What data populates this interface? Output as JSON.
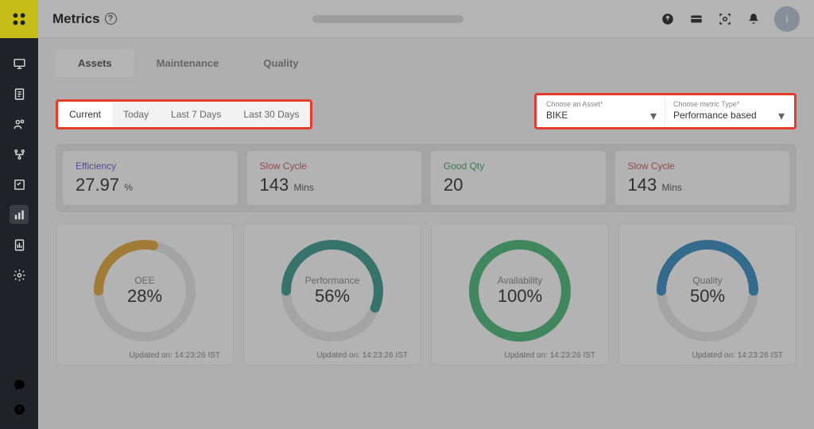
{
  "page": {
    "title": "Metrics"
  },
  "sidebar": {
    "icons": [
      {
        "name": "monitor-icon"
      },
      {
        "name": "orders-icon"
      },
      {
        "name": "users-icon"
      },
      {
        "name": "workflow-icon"
      },
      {
        "name": "tasks-icon"
      },
      {
        "name": "metrics-icon",
        "active": true
      },
      {
        "name": "reports-icon"
      },
      {
        "name": "settings-icon"
      }
    ],
    "bottom": [
      {
        "name": "feedback-icon"
      },
      {
        "name": "help-icon"
      }
    ]
  },
  "topbar": {
    "icons": [
      {
        "name": "upload-icon"
      },
      {
        "name": "card-icon"
      },
      {
        "name": "scan-icon"
      },
      {
        "name": "bell-icon"
      }
    ],
    "avatar_initial": "i"
  },
  "tabs_primary": [
    {
      "label": "Assets",
      "active": true
    },
    {
      "label": "Maintenance",
      "active": false
    },
    {
      "label": "Quality",
      "active": false
    }
  ],
  "time_tabs": [
    {
      "label": "Current",
      "active": true
    },
    {
      "label": "Today",
      "active": false
    },
    {
      "label": "Last 7 Days",
      "active": false
    },
    {
      "label": "Last 30 Days",
      "active": false
    }
  ],
  "selectors": {
    "asset": {
      "label": "Choose an Asset*",
      "value": "BIKE"
    },
    "metric_type": {
      "label": "Choose metric Type*",
      "value": "Performance based"
    }
  },
  "stat_cards": [
    {
      "label": "Efficiency",
      "label_color": "#6b5fc7",
      "value": "27.97",
      "unit": "%"
    },
    {
      "label": "Slow Cycle",
      "label_color": "#c75f5f",
      "value": "143",
      "unit": "Mins"
    },
    {
      "label": "Good Qty",
      "label_color": "#3fa86b",
      "value": "20",
      "unit": ""
    },
    {
      "label": "Slow Cycle",
      "label_color": "#c75f5f",
      "value": "143",
      "unit": "Mins"
    }
  ],
  "gauges": [
    {
      "name": "OEE",
      "value": "28%",
      "percent": 28,
      "color": "#e0a93e",
      "track": "#e6e6e6",
      "footer": "Updated on: 14:23:26 IST"
    },
    {
      "name": "Performance",
      "value": "56%",
      "percent": 56,
      "color": "#3f9b90",
      "track": "#e6e6e6",
      "footer": "Updated on: 14:23:26 IST"
    },
    {
      "name": "Availability",
      "value": "100%",
      "percent": 100,
      "color": "#4fbb7c",
      "track": "#e6e6e6",
      "footer": "Updated on: 14:23:26 IST"
    },
    {
      "name": "Quality",
      "value": "50%",
      "percent": 50,
      "color": "#3b8fc4",
      "track": "#e6e6e6",
      "footer": "Updated on: 14:23:26 IST"
    }
  ],
  "highlight_color": "#e43b2f"
}
